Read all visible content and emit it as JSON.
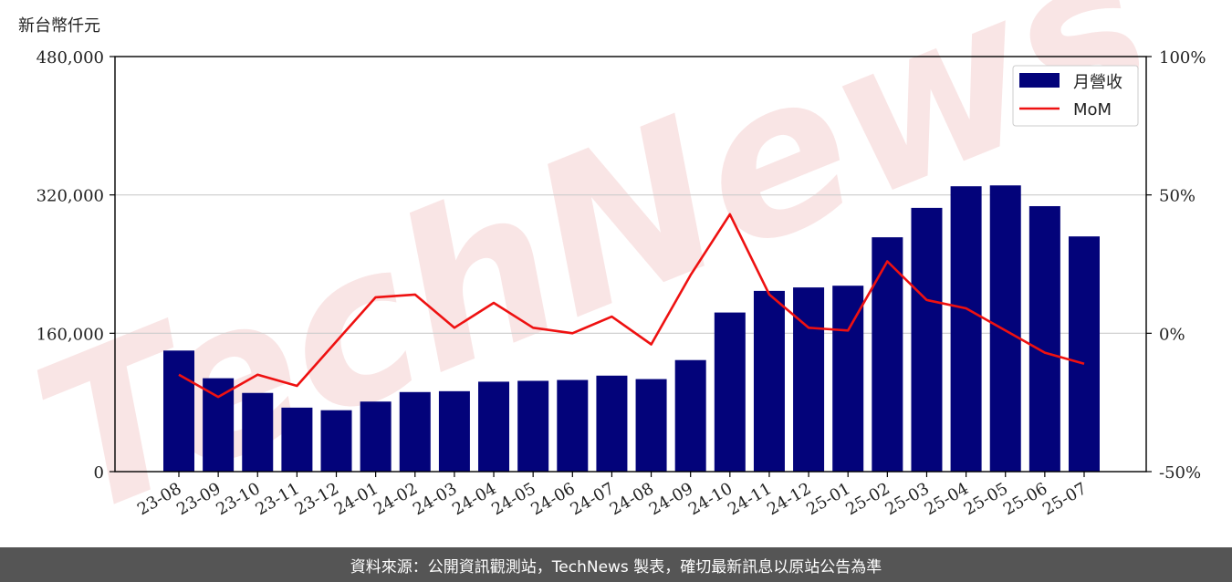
{
  "y_unit_label": "新台幣仟元",
  "footer_text": "資料來源：公開資訊觀測站，TechNews 製表，確切最新訊息以原站公告為準",
  "watermark_text": "TechNews",
  "legend": {
    "bar_label": "月營收",
    "line_label": "MoM"
  },
  "colors": {
    "bar": "#03037a",
    "line": "#ee1111",
    "watermark": "#f3c6c6"
  },
  "chart_data": {
    "type": "bar",
    "categories": [
      "23-08",
      "23-09",
      "23-10",
      "23-11",
      "23-12",
      "24-01",
      "24-02",
      "24-03",
      "24-04",
      "24-05",
      "24-06",
      "24-07",
      "24-08",
      "24-09",
      "24-10",
      "24-11",
      "24-12",
      "25-01",
      "25-02",
      "25-03",
      "25-04",
      "25-05",
      "25-06",
      "25-07"
    ],
    "series": [
      {
        "name": "月營收",
        "type": "bar",
        "axis": "left",
        "values": [
          140000,
          108000,
          91000,
          74000,
          71000,
          81000,
          92000,
          93000,
          104000,
          105000,
          106000,
          111000,
          107000,
          129000,
          184000,
          209000,
          213000,
          215000,
          271000,
          305000,
          330000,
          331000,
          307000,
          272000
        ]
      },
      {
        "name": "MoM",
        "type": "line",
        "axis": "right",
        "unit": "%",
        "values": [
          -15,
          -23,
          -15,
          -19,
          -3,
          13,
          14,
          2,
          11,
          2,
          0,
          6,
          -4,
          21,
          43,
          14,
          2,
          1,
          26,
          12,
          9,
          1,
          -7,
          -11
        ]
      }
    ],
    "y_left": {
      "ticks": [
        0,
        160000,
        320000,
        480000
      ],
      "tick_labels": [
        "0",
        "160,000",
        "320,000",
        "480,000"
      ],
      "lim": [
        0,
        480000
      ]
    },
    "y_right": {
      "ticks": [
        -50,
        0,
        50,
        100
      ],
      "tick_labels": [
        "-50%",
        "0%",
        "50%",
        "100%"
      ],
      "lim": [
        -50,
        100
      ]
    },
    "grid": "horizontal",
    "legend_position": "top-right"
  }
}
